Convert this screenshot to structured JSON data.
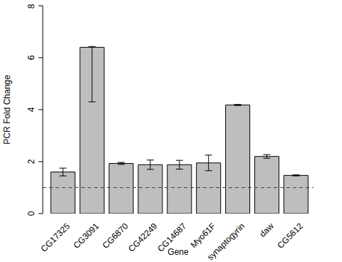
{
  "chart_data": {
    "type": "bar",
    "x_label": "Gene",
    "y_label": "PCR Fold Change",
    "categories": [
      "CG17325",
      "CG3091",
      "CG6870",
      "CG42249",
      "CG14687",
      "Myo61F",
      "synaptogyrin",
      "daw",
      "CG5612"
    ],
    "values": [
      1.6,
      6.4,
      1.93,
      1.88,
      1.88,
      1.95,
      4.18,
      2.2,
      1.47
    ],
    "errors": [
      [
        0.15,
        0.15
      ],
      [
        2.1,
        0.03
      ],
      [
        0.04,
        0.04
      ],
      [
        0.18,
        0.18
      ],
      [
        0.17,
        0.17
      ],
      [
        0.3,
        0.3
      ],
      [
        0.02,
        0.02
      ],
      [
        0.07,
        0.07
      ],
      [
        0.02,
        0.02
      ]
    ],
    "hline": 1,
    "color": "#bebebe",
    "ylim": [
      0,
      8
    ],
    "yticks": [
      0,
      2,
      4,
      6,
      8
    ]
  }
}
